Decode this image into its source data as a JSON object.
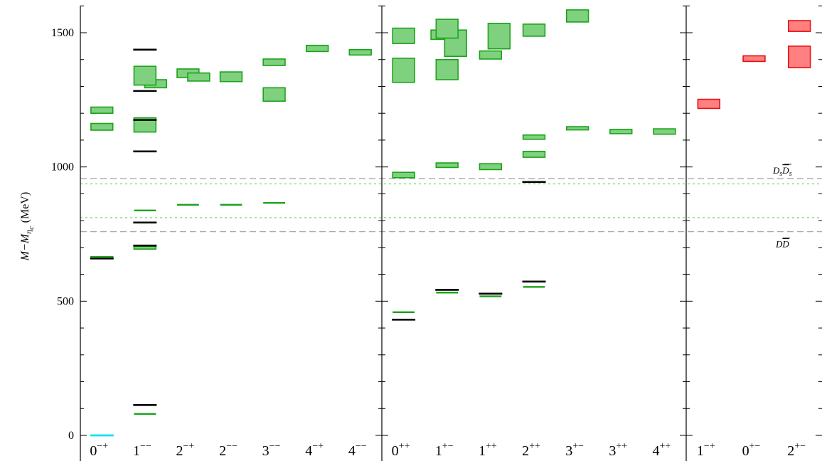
{
  "chart_data": {
    "type": "charmonium-spectrum",
    "ylabel": "M−M",
    "ylabel_sub": "η",
    "ylabel_subsub": "c",
    "ylabel_unit": "(MeV)",
    "ylim": [
      -30,
      1610
    ],
    "yticks": [
      0,
      500,
      1000,
      1500
    ],
    "panels": [
      {
        "id": "left",
        "categories": [
          {
            "base": "0",
            "sup": "−+"
          },
          {
            "base": "1",
            "sup": "−−"
          },
          {
            "base": "2",
            "sup": "−+"
          },
          {
            "base": "2",
            "sup": "−−"
          },
          {
            "base": "3",
            "sup": "−−"
          },
          {
            "base": "4",
            "sup": "−+"
          },
          {
            "base": "4",
            "sup": "−−"
          }
        ],
        "experiment": [
          {
            "cat": 0,
            "value": 659
          },
          {
            "cat": 1,
            "value": 113
          },
          {
            "cat": 1,
            "value": 707
          },
          {
            "cat": 1,
            "value": 793
          },
          {
            "cat": 1,
            "value": 1058
          },
          {
            "cat": 1,
            "value": 1175
          },
          {
            "cat": 1,
            "value": 1283
          },
          {
            "cat": 1,
            "value": 1437
          }
        ],
        "reference": [
          {
            "cat": 0,
            "value": 0
          }
        ],
        "lattice_lines": [
          {
            "cat": 1,
            "value": 80
          },
          {
            "cat": 1,
            "value": 838
          },
          {
            "cat": 2,
            "value": 859
          },
          {
            "cat": 3,
            "value": 859
          },
          {
            "cat": 4,
            "value": 866
          }
        ],
        "lattice_boxes": [
          {
            "cat": 0,
            "low": 660,
            "high": 666
          },
          {
            "cat": 0,
            "low": 1137,
            "high": 1162
          },
          {
            "cat": 0,
            "low": 1200,
            "high": 1223
          },
          {
            "cat": 1,
            "low": 694,
            "high": 704
          },
          {
            "cat": 1,
            "low": 1130,
            "high": 1183
          },
          {
            "cat": 1,
            "low": 1295,
            "high": 1325,
            "offset": 0.25
          },
          {
            "cat": 1,
            "low": 1305,
            "high": 1375
          },
          {
            "cat": 2,
            "low": 1333,
            "high": 1365
          },
          {
            "cat": 2,
            "low": 1320,
            "high": 1350,
            "offset": 0.25
          },
          {
            "cat": 3,
            "low": 1318,
            "high": 1354
          },
          {
            "cat": 4,
            "low": 1245,
            "high": 1295
          },
          {
            "cat": 4,
            "low": 1378,
            "high": 1402
          },
          {
            "cat": 5,
            "low": 1430,
            "high": 1453
          },
          {
            "cat": 6,
            "low": 1417,
            "high": 1437
          }
        ]
      },
      {
        "id": "middle",
        "categories": [
          {
            "base": "0",
            "sup": "++"
          },
          {
            "base": "1",
            "sup": "+−"
          },
          {
            "base": "1",
            "sup": "++"
          },
          {
            "base": "2",
            "sup": "++"
          },
          {
            "base": "3",
            "sup": "+−"
          },
          {
            "base": "3",
            "sup": "++"
          },
          {
            "base": "4",
            "sup": "++"
          }
        ],
        "experiment": [
          {
            "cat": 0,
            "value": 431
          },
          {
            "cat": 1,
            "value": 542
          },
          {
            "cat": 2,
            "value": 528
          },
          {
            "cat": 3,
            "value": 573
          },
          {
            "cat": 3,
            "value": 944
          }
        ],
        "reference": [],
        "lattice_lines": [
          {
            "cat": 0,
            "value": 459
          },
          {
            "cat": 1,
            "value": 532
          },
          {
            "cat": 2,
            "value": 518
          },
          {
            "cat": 3,
            "value": 553
          }
        ],
        "lattice_boxes": [
          {
            "cat": 0,
            "low": 960,
            "high": 980
          },
          {
            "cat": 0,
            "low": 1315,
            "high": 1405
          },
          {
            "cat": 0,
            "low": 1460,
            "high": 1517
          },
          {
            "cat": 1,
            "low": 998,
            "high": 1015
          },
          {
            "cat": 1,
            "low": 1325,
            "high": 1400
          },
          {
            "cat": 1,
            "low": 1475,
            "high": 1510,
            "offset": -0.12
          },
          {
            "cat": 1,
            "low": 1412,
            "high": 1510,
            "offset": 0.2
          },
          {
            "cat": 1,
            "low": 1480,
            "high": 1550
          },
          {
            "cat": 2,
            "low": 990,
            "high": 1012
          },
          {
            "cat": 2,
            "low": 1402,
            "high": 1432
          },
          {
            "cat": 2,
            "low": 1440,
            "high": 1535,
            "offset": 0.2
          },
          {
            "cat": 3,
            "low": 1036,
            "high": 1058
          },
          {
            "cat": 3,
            "low": 1103,
            "high": 1119
          },
          {
            "cat": 3,
            "low": 1487,
            "high": 1532
          },
          {
            "cat": 4,
            "low": 1138,
            "high": 1150
          },
          {
            "cat": 4,
            "low": 1540,
            "high": 1585
          },
          {
            "cat": 5,
            "low": 1124,
            "high": 1140
          },
          {
            "cat": 6,
            "low": 1122,
            "high": 1142
          }
        ]
      },
      {
        "id": "right",
        "categories": [
          {
            "base": "1",
            "sup": "−+"
          },
          {
            "base": "0",
            "sup": "+−"
          },
          {
            "base": "2",
            "sup": "+−"
          }
        ],
        "experiment": [],
        "reference": [],
        "lattice_lines": [],
        "hybrid_boxes": [
          {
            "cat": 0,
            "low": 1218,
            "high": 1252
          },
          {
            "cat": 1,
            "low": 1393,
            "high": 1414
          },
          {
            "cat": 2,
            "low": 1370,
            "high": 1450
          },
          {
            "cat": 2,
            "low": 1505,
            "high": 1545
          }
        ]
      }
    ],
    "thresholds": [
      {
        "value": 957,
        "style": "dashed",
        "color": "#aaaaaa",
        "label_main": "D",
        "label_sub": "s",
        "label_bar": "D",
        "label_bar_sub": "s"
      },
      {
        "value": 759,
        "style": "dashed",
        "color": "#aaaaaa",
        "label_main": "D",
        "label_bar": "D"
      },
      {
        "value": 937,
        "style": "dotted",
        "color": "#77dd77"
      },
      {
        "value": 811,
        "style": "dotted",
        "color": "#77dd77"
      }
    ],
    "colors": {
      "experiment": "#000000",
      "reference": "#00e5ee",
      "lattice_fill": "#7fd17f",
      "lattice_stroke": "#1aa31a",
      "hybrid_fill": "#ff8080",
      "hybrid_stroke": "#e81010",
      "threshold_dashed": "#aaaaaa",
      "threshold_dotted": "#77dd77"
    }
  }
}
